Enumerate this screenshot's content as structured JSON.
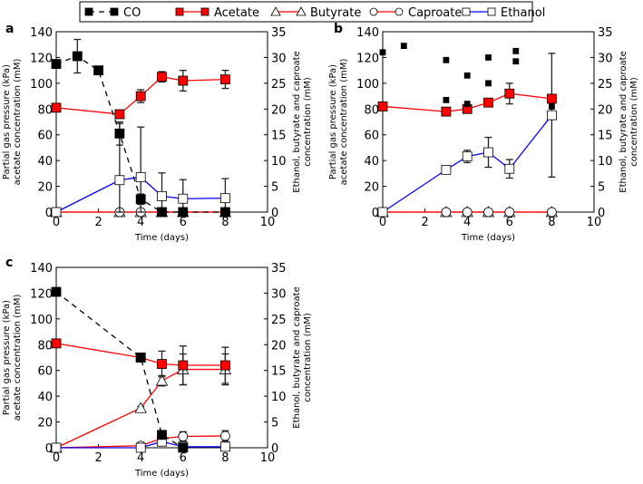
{
  "legend": {
    "entries": [
      {
        "label": "CO",
        "marker": "square-filled",
        "color": "#000000",
        "line": "dashed"
      },
      {
        "label": "Acetate",
        "marker": "square-red",
        "color": "#ff0000",
        "line": "solid"
      },
      {
        "label": "Butyrate",
        "marker": "triangle-open",
        "color": "#ff0000",
        "line": "solid"
      },
      {
        "label": "Caproate",
        "marker": "circle-open",
        "color": "#ff0000",
        "line": "solid"
      },
      {
        "label": "Ethanol",
        "marker": "square-open",
        "color": "#0000ff",
        "line": "solid"
      }
    ]
  },
  "chart_data": [
    {
      "panel": "a",
      "type": "line",
      "xlabel": "Time (days)",
      "ylabel": [
        "Partial gas pressure (kPa)",
        "acetate concentration (mM)"
      ],
      "y2label": [
        "Ethanol, butyrate and caproate",
        "concentration (mM)"
      ],
      "xlim": [
        0,
        10
      ],
      "ylim": [
        0,
        140
      ],
      "y2lim": [
        0,
        35
      ],
      "xticks": [
        "0",
        "2",
        "4",
        "6",
        "8",
        "10"
      ],
      "yticks": [
        "0",
        "20",
        "40",
        "60",
        "80",
        "100",
        "120",
        "140"
      ],
      "y2ticks": [
        "0",
        "5",
        "10",
        "15",
        "20",
        "25",
        "30",
        "35"
      ],
      "series": [
        {
          "name": "CO",
          "axis": "left",
          "x": [
            0,
            1,
            2,
            3,
            4,
            5,
            6,
            8
          ],
          "y": [
            115,
            121,
            110,
            61,
            10,
            0,
            0,
            0
          ],
          "err": [
            0,
            13,
            3,
            9,
            4,
            0,
            0,
            0
          ],
          "line": true
        },
        {
          "name": "Acetate",
          "axis": "left",
          "x": [
            0,
            3,
            4,
            5,
            6,
            8
          ],
          "y": [
            81,
            76,
            90,
            105,
            102,
            103
          ],
          "err": [
            1,
            2,
            5,
            4,
            8,
            7
          ],
          "line": true
        },
        {
          "name": "Butyrate",
          "axis": "right",
          "x": [
            0,
            3,
            4,
            5,
            6,
            8
          ],
          "y": [
            0,
            0,
            0,
            0,
            0,
            0
          ],
          "err": [
            0,
            0,
            0,
            0,
            0,
            0
          ],
          "line": true
        },
        {
          "name": "Caproate",
          "axis": "right",
          "x": [
            0,
            3,
            4,
            5,
            6,
            8
          ],
          "y": [
            0,
            0,
            0,
            0,
            0,
            0
          ],
          "err": [
            0,
            0,
            0,
            0,
            0,
            0
          ],
          "line": true
        },
        {
          "name": "Ethanol",
          "axis": "right",
          "x": [
            0,
            3,
            4,
            5,
            6,
            8
          ],
          "y": [
            0,
            6.2,
            6.8,
            3.1,
            2.6,
            2.7
          ],
          "err": [
            0,
            11,
            9.7,
            4.5,
            3.7,
            3.8
          ],
          "line": true
        }
      ]
    },
    {
      "panel": "b",
      "type": "line",
      "xlabel": "Time (days)",
      "ylabel": [
        "Partial gas pressure (kPa)",
        "acetate concentration (mM)"
      ],
      "y2label": [
        "Ethanol, butyrate and caproate",
        "concentration (mM)"
      ],
      "xlim": [
        0,
        10
      ],
      "ylim": [
        0,
        140
      ],
      "y2lim": [
        0,
        35
      ],
      "xticks": [
        "0",
        "2",
        "4",
        "6",
        "8",
        "10"
      ],
      "yticks": [
        "0",
        "20",
        "40",
        "60",
        "80",
        "100",
        "120",
        "140"
      ],
      "y2ticks": [
        "0",
        "5",
        "10",
        "15",
        "20",
        "25",
        "30",
        "35"
      ],
      "series": [
        {
          "name": "CO",
          "axis": "left",
          "x": [
            0,
            1,
            3,
            3,
            4,
            4,
            5,
            5,
            6.3,
            6.3,
            8
          ],
          "y": [
            124,
            129,
            118,
            87,
            106,
            84,
            120,
            100,
            125,
            117,
            82
          ],
          "err": [
            0,
            0,
            0,
            0,
            0,
            0,
            0,
            0,
            0,
            0,
            0
          ],
          "line": false,
          "small": true
        },
        {
          "name": "Acetate",
          "axis": "left",
          "x": [
            0,
            3,
            4,
            5,
            6,
            8
          ],
          "y": [
            82,
            78,
            80,
            85,
            92,
            88
          ],
          "err": [
            1,
            1,
            1,
            1,
            8,
            0
          ],
          "line": true
        },
        {
          "name": "Butyrate",
          "axis": "right",
          "x": [
            0,
            3,
            4,
            5,
            6,
            8
          ],
          "y": [
            0,
            0,
            0,
            0,
            0,
            0
          ],
          "err": [
            0,
            0,
            0,
            0,
            0,
            0
          ],
          "line": true
        },
        {
          "name": "Caproate",
          "axis": "right",
          "x": [
            0,
            3,
            4,
            5,
            6,
            8
          ],
          "y": [
            0,
            0,
            0,
            0,
            0,
            0
          ],
          "err": [
            0,
            0,
            0,
            0,
            0,
            0
          ],
          "line": true
        },
        {
          "name": "Ethanol",
          "axis": "right",
          "x": [
            0,
            3,
            4,
            5,
            6,
            8
          ],
          "y": [
            0,
            8.2,
            10.8,
            11.6,
            8.4,
            18.8
          ],
          "err": [
            0,
            0.3,
            1.2,
            2.9,
            1.8,
            12
          ],
          "line": true
        }
      ]
    },
    {
      "panel": "c",
      "type": "line",
      "xlabel": "Time (days)",
      "ylabel": [
        "Partial gas pressure (kPa)",
        "acetate concentration (mM)"
      ],
      "y2label": [
        "Ethanol, butyrate and caproate",
        "concentration (mM)"
      ],
      "xlim": [
        0,
        10
      ],
      "ylim": [
        0,
        140
      ],
      "y2lim": [
        0,
        35
      ],
      "xticks": [
        "0",
        "2",
        "4",
        "6",
        "8",
        "10"
      ],
      "yticks": [
        "0",
        "20",
        "40",
        "60",
        "80",
        "100",
        "120",
        "140"
      ],
      "y2ticks": [
        "0",
        "5",
        "10",
        "15",
        "20",
        "25",
        "30",
        "35"
      ],
      "series": [
        {
          "name": "CO",
          "axis": "left",
          "x": [
            0,
            4,
            5,
            6
          ],
          "y": [
            121,
            70,
            10,
            0
          ],
          "err": [
            0,
            2,
            3,
            0
          ],
          "line": true
        },
        {
          "name": "Acetate",
          "axis": "left",
          "x": [
            0,
            4,
            5,
            6,
            8
          ],
          "y": [
            81,
            70,
            65,
            64,
            64
          ],
          "err": [
            1,
            3,
            10,
            15,
            14
          ],
          "line": true
        },
        {
          "name": "Butyrate",
          "axis": "right",
          "x": [
            0,
            4,
            5,
            6,
            8
          ],
          "y": [
            0,
            7.7,
            13,
            15.2,
            15.2
          ],
          "err": [
            0,
            0.3,
            1,
            3,
            3
          ],
          "line": true
        },
        {
          "name": "Caproate",
          "axis": "right",
          "x": [
            0,
            4,
            5,
            6,
            8
          ],
          "y": [
            0,
            0.4,
            1.8,
            2.2,
            2.3
          ],
          "err": [
            0,
            0.2,
            0.5,
            0.9,
            1
          ],
          "line": true
        },
        {
          "name": "Ethanol",
          "axis": "right",
          "x": [
            0,
            4,
            5,
            6,
            8
          ],
          "y": [
            0,
            0,
            1.2,
            0.2,
            0.2
          ],
          "err": [
            0,
            0,
            0.3,
            0.1,
            0.1
          ],
          "line": true
        }
      ]
    }
  ]
}
